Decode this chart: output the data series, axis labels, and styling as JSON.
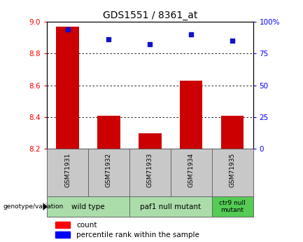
{
  "title": "GDS1551 / 8361_at",
  "samples": [
    "GSM71931",
    "GSM71932",
    "GSM71933",
    "GSM71934",
    "GSM71935"
  ],
  "bar_values": [
    8.97,
    8.41,
    8.3,
    8.63,
    8.41
  ],
  "scatter_values": [
    8.95,
    8.89,
    8.86,
    8.92,
    8.88
  ],
  "bar_bottom": 8.2,
  "ylim_left": [
    8.2,
    9.0
  ],
  "ylim_right": [
    0,
    100
  ],
  "yticks_left": [
    8.2,
    8.4,
    8.6,
    8.8,
    9.0
  ],
  "yticks_right": [
    0,
    25,
    50,
    75,
    100
  ],
  "yticklabels_right": [
    "0",
    "25",
    "50",
    "75",
    "100%"
  ],
  "bar_color": "#cc0000",
  "scatter_color": "#1111cc",
  "gridline_color": "#000000",
  "bg_color": "#ffffff",
  "legend_count_label": "count",
  "legend_pct_label": "percentile rank within the sample",
  "cell_bg": "#c8c8c8",
  "cell_border": "#666666",
  "group_color_light": "#aaddaa",
  "group_color_dark": "#55cc55",
  "group_defs": [
    {
      "start": 0,
      "end": 2,
      "label": "wild type"
    },
    {
      "start": 2,
      "end": 4,
      "label": "paf1 null mutant"
    },
    {
      "start": 4,
      "end": 5,
      "label": "ctr9 null\nmutant",
      "dark": true
    }
  ]
}
